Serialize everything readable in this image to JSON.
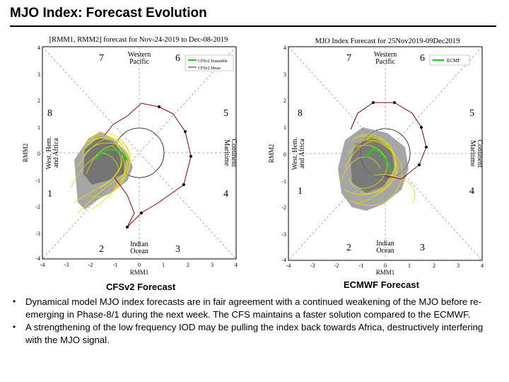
{
  "title": "MJO Index: Forecast Evolution",
  "left_panel": {
    "chart_title": "[RMM1, RMM2] forecast for Nov-24-2019 to Dec-08-2019",
    "xlabel": "RMM1",
    "ylabel": "RMM2",
    "legend": [
      "CFSv2 Ensemble",
      "CFSv2 Mean"
    ],
    "phases": [
      "1",
      "2",
      "3",
      "4",
      "5",
      "6",
      "7",
      "8"
    ],
    "regions": {
      "top": [
        "Western",
        "Pacific"
      ],
      "bottom": [
        "Indian",
        "Ocean"
      ],
      "left": [
        "West. Hem.",
        "and Africa"
      ],
      "right": [
        "Maritime",
        "Continent"
      ]
    },
    "xticks": [
      "-4",
      "-3",
      "-2",
      "-1",
      "0",
      "1",
      "2",
      "3",
      "4"
    ],
    "yticks": [
      "4",
      "3",
      "2",
      "1",
      "0",
      "-1",
      "-2",
      "-3",
      "-4"
    ],
    "caption": "CFSv2 Forecast"
  },
  "right_panel": {
    "chart_title": "MJO Index Forecast for 25Nov2019-09Dec2019",
    "xlabel": "RMM1",
    "ylabel": "RMM2",
    "legend": [
      "ECMF"
    ],
    "phases": [
      "1",
      "2",
      "3",
      "4",
      "5",
      "6",
      "7",
      "8"
    ],
    "regions": {
      "top": [
        "Western",
        "Pacific"
      ],
      "bottom": [
        "Indian",
        "Ocean"
      ],
      "left": [
        "West. Hem.",
        "and Africa"
      ],
      "right": [
        "Maritime",
        "Continent"
      ]
    },
    "xticks": [
      "-4",
      "-3",
      "-2",
      "-1",
      "0",
      "1",
      "2",
      "3",
      "4"
    ],
    "yticks": [
      "4",
      "3",
      "2",
      "1",
      "0",
      "-1",
      "-2",
      "-3",
      "-4"
    ],
    "caption": "ECMWF Forecast"
  },
  "bullets": [
    "Dynamical model MJO index forecasts are in fair agreement with a continued weakening of the MJO before re-emerging in Phase-8/1 during the next week. The CFS maintains a faster solution compared to the ECMWF.",
    "A strengthening of the low frequency IOD may be pulling the index back towards Africa, destructively interfering with the MJO signal."
  ],
  "colors": {
    "ensemble": "#e8e000",
    "mean": "#22cc22",
    "spread": "#888888",
    "observed": "#8b0000"
  }
}
